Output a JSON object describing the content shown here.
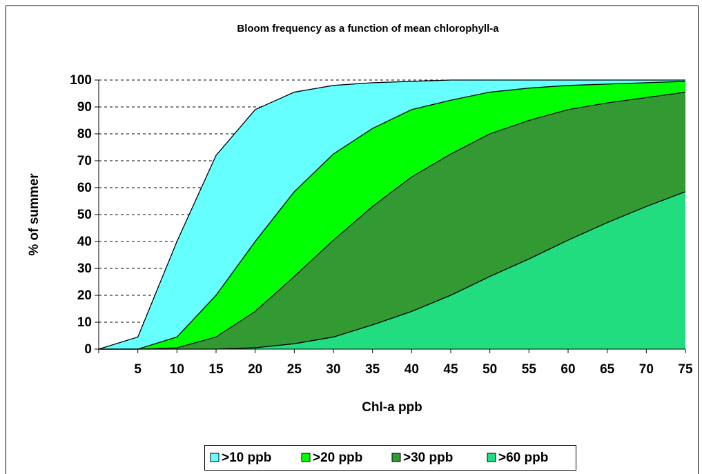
{
  "chart_data": {
    "type": "area",
    "title": "Bloom frequency as a function of mean chlorophyll-a",
    "x_label": "Chl-a ppb",
    "y_label": "% of summer",
    "categories": [
      null,
      "5",
      "10",
      "15",
      "20",
      "25",
      "30",
      "35",
      "40",
      "45",
      "50",
      "55",
      "60",
      "65",
      "70",
      "75"
    ],
    "series": [
      {
        "name": ">10 ppb",
        "color": "#66ffff",
        "values": [
          0,
          4.5,
          40,
          72,
          89,
          95.5,
          98,
          99,
          99.5,
          100,
          100,
          100,
          100,
          100,
          100,
          100
        ]
      },
      {
        "name": ">20 ppb",
        "color": "#00ff00",
        "values": [
          0,
          0,
          4.5,
          20,
          40,
          58.5,
          72.5,
          82,
          89,
          92.5,
          95.5,
          97,
          98,
          98.5,
          99,
          99.5
        ]
      },
      {
        "name": ">30 ppb",
        "color": "#339933",
        "values": [
          0,
          0,
          0.5,
          4.5,
          14,
          27,
          40.5,
          53,
          64,
          72.5,
          80,
          85,
          89,
          91.5,
          93.5,
          95.5
        ]
      },
      {
        "name": ">60 ppb",
        "color": "#22dd80",
        "values": [
          0,
          0,
          0,
          0,
          0.5,
          2,
          4.5,
          9,
          14,
          20,
          27,
          33.5,
          40.5,
          47,
          53,
          58.5
        ]
      }
    ],
    "ylim": [
      0,
      100
    ],
    "yticks": [
      0,
      10,
      20,
      30,
      40,
      50,
      60,
      70,
      80,
      90,
      100
    ],
    "grid": true,
    "legend": "bottom"
  }
}
